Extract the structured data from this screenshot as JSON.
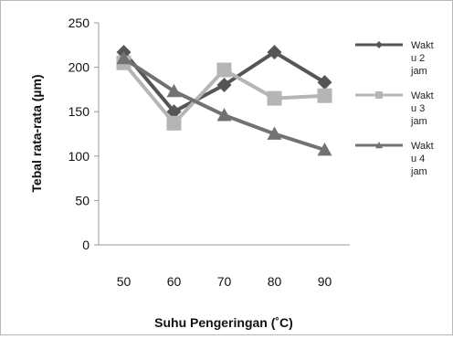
{
  "chart_data": {
    "type": "line",
    "title": "",
    "xlabel": "Suhu Pengeringan (˚C)",
    "ylabel": "Tebal rata-rata (µm)",
    "x": [
      50,
      60,
      70,
      80,
      90
    ],
    "ylim": [
      0,
      250
    ],
    "yticks": [
      0,
      50,
      100,
      150,
      200,
      250
    ],
    "grid": false,
    "legend_position": "right",
    "series": [
      {
        "name": "Waktu 2 jam",
        "legend_lines": [
          "Wakt",
          "u 2",
          "jam"
        ],
        "values": [
          217,
          150,
          180,
          217,
          183
        ],
        "marker": "diamond",
        "color": "#555555"
      },
      {
        "name": "Waktu 3 jam",
        "legend_lines": [
          "Wakt",
          "u 3",
          "jam"
        ],
        "values": [
          205,
          137,
          197,
          165,
          168
        ],
        "marker": "square",
        "color": "#b5b5b5"
      },
      {
        "name": "Waktu 4 jam",
        "legend_lines": [
          "Wakt",
          "u 4",
          "jam"
        ],
        "values": [
          210,
          173,
          146,
          125,
          107
        ],
        "marker": "triangle",
        "color": "#727272"
      }
    ]
  }
}
